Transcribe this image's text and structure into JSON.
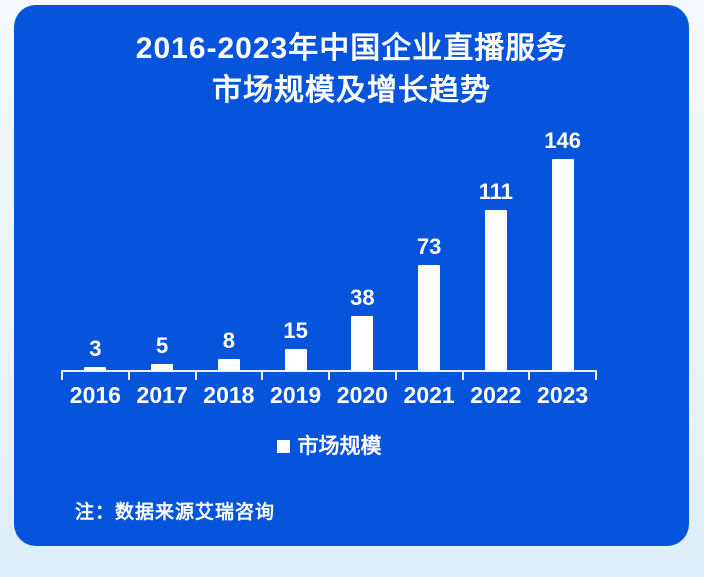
{
  "title": {
    "line1": "2016-2023年中国企业直播服务",
    "line2": "市场规模及增长趋势"
  },
  "chart_data": {
    "type": "bar",
    "title": "2016-2023年中国企业直播服务市场规模及增长趋势",
    "categories": [
      "2016",
      "2017",
      "2018",
      "2019",
      "2020",
      "2021",
      "2022",
      "2023"
    ],
    "series": [
      {
        "name": "市场规模",
        "values": [
          3,
          5,
          8,
          15,
          38,
          73,
          111,
          146
        ]
      }
    ],
    "value_labels": [
      3,
      5,
      8,
      15,
      38,
      73,
      111,
      146
    ],
    "xlabel": "",
    "ylabel": "",
    "ylim": [
      0,
      160
    ],
    "grid": false,
    "legend_position": "bottom",
    "bar_color": "#ffffff"
  },
  "note": "注：数据来源艾瑞咨询",
  "colors": {
    "card_bg": "#0653dc",
    "page_bg_top": "#f5f9fd",
    "page_bg_bottom": "#ddeefa",
    "bar": "#ffffff",
    "text": "#ffffff",
    "axis": "#ffffff"
  }
}
